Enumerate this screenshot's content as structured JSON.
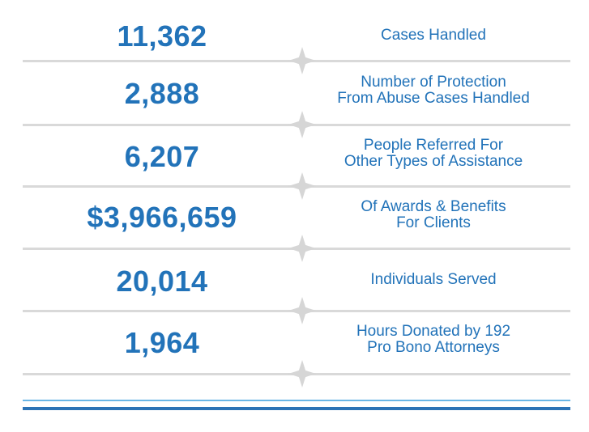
{
  "stats": [
    {
      "value": "11,362",
      "label_lines": [
        "Cases Handled"
      ]
    },
    {
      "value": "2,888",
      "label_lines": [
        "Number of Protection",
        "From Abuse Cases Handled"
      ]
    },
    {
      "value": "6,207",
      "label_lines": [
        "People Referred For",
        "Other Types of Assistance"
      ]
    },
    {
      "value": "$3,966,659",
      "label_lines": [
        "Of Awards & Benefits",
        "For Clients"
      ]
    },
    {
      "value": "20,014",
      "label_lines": [
        "Individuals Served"
      ]
    },
    {
      "value": "1,964",
      "label_lines": [
        "Hours Donated by 192",
        "Pro Bono Attorneys"
      ]
    }
  ],
  "colors": {
    "accent": "#2273b9",
    "divider": "#d9d9d9",
    "footer_light": "#6ab6e6",
    "footer_dark": "#2b73b6"
  },
  "icons": [
    "diamond-separator-icon"
  ]
}
